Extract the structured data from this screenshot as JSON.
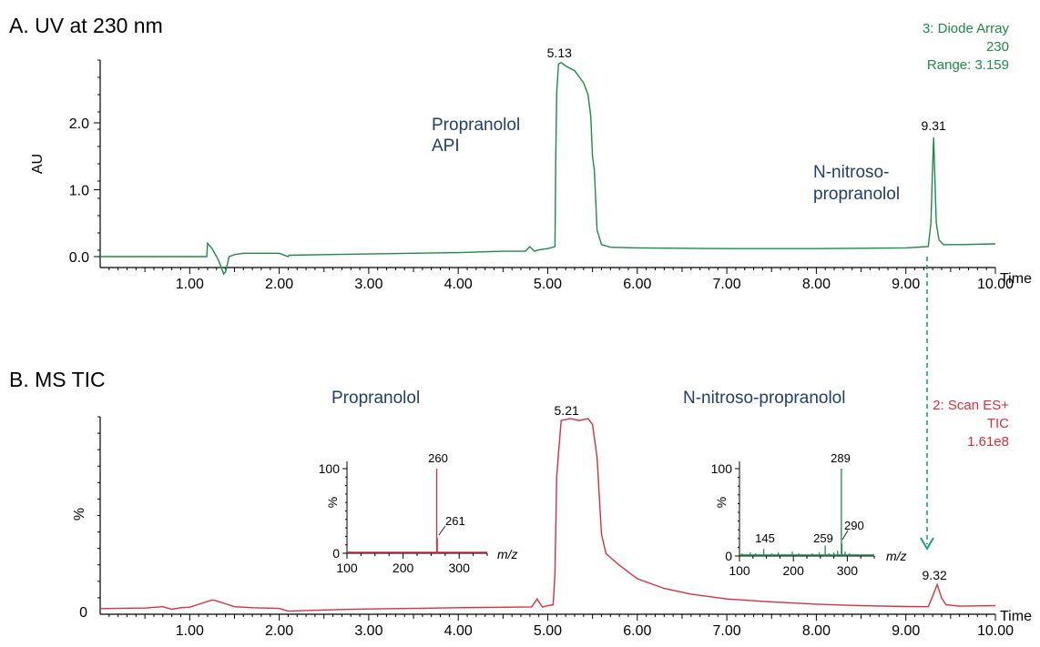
{
  "colors": {
    "uv": "#1e8a47",
    "ms": "#d6313c",
    "annotation": "#1f3f6e",
    "axis": "#000000",
    "arrow": "#1aa088"
  },
  "chart_data": [
    {
      "panel": "A",
      "type": "line",
      "title": "A. UV at 230 nm",
      "ylabel": "AU",
      "xlabel": "Time",
      "xlim": [
        0.0,
        10.0
      ],
      "ylim": [
        -0.2,
        3.0
      ],
      "xticks": [
        "1.00",
        "2.00",
        "3.00",
        "4.00",
        "5.00",
        "6.00",
        "7.00",
        "8.00",
        "9.00",
        "10.00"
      ],
      "yticks": [
        "0.0",
        "1.0",
        "2.0"
      ],
      "detector": [
        "3: Diode Array",
        "230",
        "Range: 3.159"
      ],
      "peak_labels": [
        {
          "x": 5.13,
          "text": "5.13"
        },
        {
          "x": 9.31,
          "text": "9.31"
        }
      ],
      "annotations": [
        {
          "lines": [
            "Propranolol",
            "API"
          ],
          "x": 4.4,
          "y": 2.0
        },
        {
          "lines": [
            "N-nitroso-",
            "propranolol"
          ],
          "x": 8.1,
          "y": 1.0
        }
      ],
      "series": [
        {
          "x": [
            0.0,
            1.0,
            1.19,
            1.2,
            1.25,
            1.32,
            1.38,
            1.4,
            1.44,
            1.5,
            1.6,
            2.0,
            2.1,
            2.11,
            2.5,
            3.0,
            3.5,
            4.0,
            4.5,
            4.75,
            4.8,
            4.85,
            4.9,
            5.0,
            5.08,
            5.09,
            5.1,
            5.12,
            5.15,
            5.2,
            5.3,
            5.4,
            5.45,
            5.48,
            5.5,
            5.52,
            5.55,
            5.6,
            5.7,
            6.0,
            7.0,
            8.0,
            9.0,
            9.25,
            9.28,
            9.3,
            9.31,
            9.32,
            9.34,
            9.37,
            9.42,
            9.6,
            10.0
          ],
          "y": [
            0.0,
            0.0,
            0.0,
            0.2,
            0.12,
            -0.05,
            -0.26,
            -0.23,
            0.0,
            0.03,
            0.05,
            0.05,
            0.0,
            0.02,
            0.03,
            0.04,
            0.05,
            0.06,
            0.08,
            0.08,
            0.15,
            0.08,
            0.1,
            0.12,
            0.15,
            1.5,
            2.45,
            2.88,
            2.9,
            2.85,
            2.78,
            2.6,
            2.42,
            2.1,
            1.5,
            1.3,
            0.4,
            0.18,
            0.14,
            0.13,
            0.12,
            0.12,
            0.13,
            0.15,
            0.5,
            1.4,
            1.78,
            1.35,
            0.5,
            0.25,
            0.18,
            0.18,
            0.19
          ]
        }
      ]
    },
    {
      "panel": "B",
      "type": "line",
      "title": "B. MS TIC",
      "ylabel": "%",
      "xlabel": "Time",
      "xlim": [
        0.0,
        10.0
      ],
      "ylim": [
        0,
        100
      ],
      "xticks": [
        "1.00",
        "2.00",
        "3.00",
        "4.00",
        "5.00",
        "6.00",
        "7.00",
        "8.00",
        "9.00",
        "10.00"
      ],
      "yticks": [
        "0"
      ],
      "detector": [
        "2: Scan ES+",
        "TIC",
        "1.61e8"
      ],
      "peak_labels": [
        {
          "x": 5.21,
          "text": "5.21"
        },
        {
          "x": 9.32,
          "text": "9.32"
        }
      ],
      "annotations": [
        {
          "lines": [
            "Propranolol"
          ],
          "x": 3.5,
          "y": 100
        },
        {
          "lines": [
            "N-nitroso-propranolol"
          ],
          "x": 7.2,
          "y": 100
        }
      ],
      "series": [
        {
          "x": [
            0.0,
            0.5,
            0.7,
            0.8,
            0.9,
            1.0,
            1.15,
            1.25,
            1.3,
            1.4,
            1.5,
            1.7,
            2.0,
            2.1,
            2.15,
            2.5,
            3.0,
            3.5,
            4.0,
            4.5,
            4.82,
            4.88,
            4.94,
            5.0,
            5.06,
            5.08,
            5.1,
            5.15,
            5.25,
            5.35,
            5.45,
            5.5,
            5.55,
            5.6,
            5.65,
            5.8,
            6.0,
            6.3,
            6.6,
            7.0,
            7.5,
            8.0,
            8.5,
            9.0,
            9.25,
            9.3,
            9.35,
            9.4,
            9.45,
            9.6,
            10.0
          ],
          "y": [
            1.5,
            1.8,
            2.5,
            1.2,
            2.0,
            2.2,
            4.5,
            6.0,
            5.5,
            4.0,
            2.5,
            2.0,
            1.6,
            0.2,
            0.3,
            0.8,
            1.3,
            1.6,
            2.0,
            2.2,
            2.4,
            6.5,
            2.3,
            3.0,
            3.5,
            20.0,
            70.0,
            99.0,
            100.0,
            99.0,
            100.0,
            97.0,
            80.0,
            40.0,
            30.0,
            24.0,
            17.0,
            12.0,
            9.0,
            6.5,
            5.0,
            3.8,
            3.0,
            2.6,
            2.5,
            8.0,
            14.0,
            7.0,
            3.5,
            2.8,
            3.0
          ]
        }
      ]
    },
    {
      "panel": "B-inset-1",
      "type": "bar",
      "title": "Propranolol",
      "xlabel": "m/z",
      "ylabel": "%",
      "xlim": [
        100,
        350
      ],
      "ylim": [
        0,
        100
      ],
      "xticks": [
        "100",
        "200",
        "300"
      ],
      "yticks": [
        "0",
        "100"
      ],
      "x": [
        260,
        261
      ],
      "values": [
        100,
        18
      ],
      "peak_labels": [
        "260",
        "261"
      ]
    },
    {
      "panel": "B-inset-2",
      "type": "bar",
      "title": "N-nitroso-propranolol",
      "xlabel": "m/z",
      "ylabel": "%",
      "xlim": [
        100,
        350
      ],
      "ylim": [
        0,
        100
      ],
      "xticks": [
        "100",
        "200",
        "300"
      ],
      "yticks": [
        "0",
        "100"
      ],
      "x": [
        105,
        112,
        120,
        130,
        138,
        145,
        160,
        172,
        185,
        198,
        210,
        222,
        235,
        248,
        259,
        266,
        275,
        282,
        289,
        290,
        296,
        304,
        312
      ],
      "values": [
        3,
        2,
        4,
        3,
        2,
        8,
        3,
        4,
        2,
        5,
        3,
        2,
        3,
        4,
        12,
        3,
        4,
        6,
        100,
        14,
        5,
        3,
        2
      ],
      "peak_labels": [
        "145",
        "259",
        "289",
        "290"
      ]
    }
  ]
}
